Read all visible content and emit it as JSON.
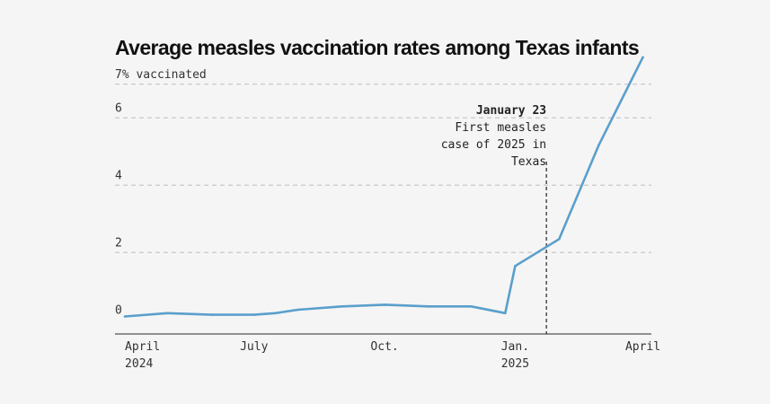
{
  "chart_data": {
    "type": "line",
    "title": "Average measles vaccination rates among Texas infants",
    "x": [
      "2024-04-01",
      "2024-05-01",
      "2024-06-01",
      "2024-07-01",
      "2024-07-16",
      "2024-08-01",
      "2024-09-01",
      "2024-10-01",
      "2024-11-01",
      "2024-12-01",
      "2024-12-25",
      "2025-01-01",
      "2025-02-01",
      "2025-03-01",
      "2025-04-01"
    ],
    "x_ticks": [
      {
        "x": "2024-04-01",
        "label": "April",
        "sublabel": "2024"
      },
      {
        "x": "2024-07-01",
        "label": "July",
        "sublabel": ""
      },
      {
        "x": "2024-10-01",
        "label": "Oct.",
        "sublabel": ""
      },
      {
        "x": "2025-01-01",
        "label": "Jan.",
        "sublabel": "2025"
      },
      {
        "x": "2025-04-01",
        "label": "April",
        "sublabel": ""
      }
    ],
    "y_ticks": [
      {
        "value": 0,
        "label": "0"
      },
      {
        "value": 2,
        "label": "2"
      },
      {
        "value": 4,
        "label": "4"
      },
      {
        "value": 6,
        "label": "6"
      },
      {
        "value": 7,
        "label": "7% vaccinated"
      }
    ],
    "series": [
      {
        "values": [
          0.1,
          0.2,
          0.15,
          0.15,
          0.2,
          0.3,
          0.4,
          0.45,
          0.4,
          0.4,
          0.2,
          1.6,
          2.4,
          5.2,
          7.8
        ]
      }
    ],
    "ylim": [
      -0.5,
      7.5
    ],
    "xlim": [
      "2024-03-25",
      "2025-04-07"
    ],
    "grid": true,
    "annotation": {
      "x": "2025-01-23",
      "lines": [
        "January 23",
        "First measles",
        "case of 2025 in",
        "Texas"
      ]
    },
    "colors": {
      "line": "#5a9fcc",
      "grid": "#c8c8c8",
      "axis": "#555555"
    }
  }
}
